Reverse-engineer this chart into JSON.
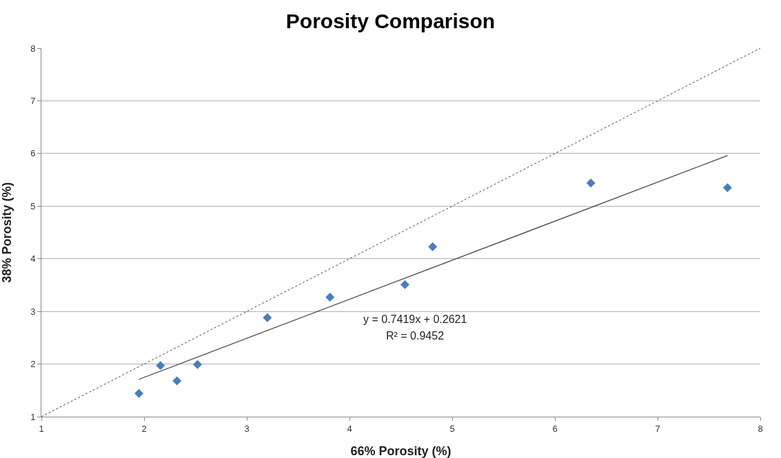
{
  "chart_data": {
    "type": "scatter",
    "title": "Porosity Comparison",
    "xlabel": "66% Porosity (%)",
    "ylabel": "38% Porosity (%)",
    "x": [
      1.95,
      2.16,
      2.32,
      2.52,
      3.2,
      3.81,
      4.54,
      4.81,
      6.35,
      7.68
    ],
    "series": [
      {
        "marker": "diamond",
        "color": "#4a7ebb",
        "values": [
          1.44,
          1.97,
          1.68,
          1.99,
          2.88,
          3.27,
          3.51,
          4.23,
          5.44,
          5.35
        ]
      },
      {
        "type": "line",
        "color": "#404040",
        "line_style": "solid",
        "x": [
          1.95,
          7.68
        ],
        "values": [
          1.71,
          5.96
        ]
      },
      {
        "type": "line",
        "color": "#404040",
        "line_style": "dotted",
        "x": [
          1,
          8
        ],
        "values": [
          1,
          8
        ]
      }
    ],
    "annotations": [
      "y = 0.7419x + 0.2621",
      "R² = 0.9452"
    ],
    "xlim": [
      1,
      8
    ],
    "xticks": [
      1,
      2,
      3,
      4,
      5,
      6,
      7,
      8
    ],
    "ylim": [
      1,
      8
    ],
    "yticks": [
      1,
      2,
      3,
      4,
      5,
      6,
      7,
      8
    ],
    "grid": "y"
  }
}
